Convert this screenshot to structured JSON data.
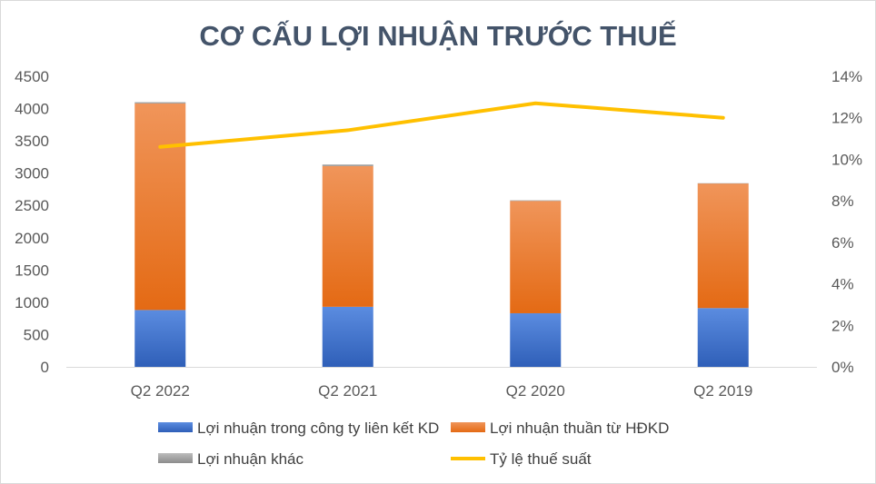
{
  "chart_data": {
    "type": "bar",
    "stacked": true,
    "title": "CƠ CẤU LỢI NHUẬN TRƯỚC THUẾ",
    "categories": [
      "Q2 2022",
      "Q2 2021",
      "Q2 2020",
      "Q2 2019"
    ],
    "series": [
      {
        "name": "Lợi nhuận trong công ty liên kết KD",
        "type": "bar",
        "axis": "left",
        "color": "#4472c4",
        "values": [
          880,
          930,
          830,
          910
        ]
      },
      {
        "name": "Lợi nhuận thuần từ HĐKD",
        "type": "bar",
        "axis": "left",
        "color": "#ed7d31",
        "values": [
          3200,
          2180,
          1740,
          1930
        ]
      },
      {
        "name": "Lợi nhuận khác",
        "type": "bar",
        "axis": "left",
        "color": "#a5a5a5",
        "values": [
          20,
          25,
          10,
          5
        ]
      },
      {
        "name": "Tỷ lệ thuế suất",
        "type": "line",
        "axis": "right",
        "color": "#ffc000",
        "values": [
          0.106,
          0.114,
          0.127,
          0.12
        ]
      }
    ],
    "ylim": [
      0,
      4500
    ],
    "y_ticks": [
      "0",
      "500",
      "1000",
      "1500",
      "2000",
      "2500",
      "3000",
      "3500",
      "4000",
      "4500"
    ],
    "y2lim": [
      0,
      0.14
    ],
    "y2_ticks": [
      "0%",
      "2%",
      "4%",
      "6%",
      "8%",
      "10%",
      "12%",
      "14%"
    ],
    "grid": false,
    "legend_position": "bottom"
  }
}
